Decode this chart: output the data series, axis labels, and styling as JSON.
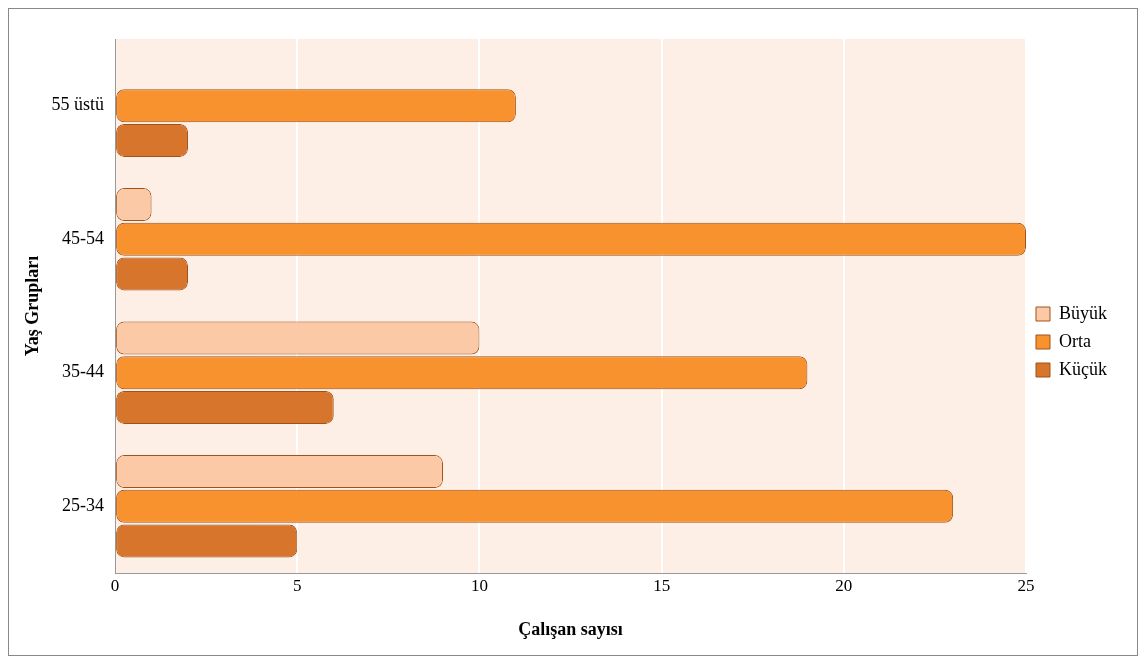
{
  "chart_data": {
    "type": "bar",
    "orientation": "horizontal",
    "xlabel": "Çalışan sayısı",
    "ylabel": "Yaş Grupları",
    "categories": [
      "55 üstü",
      "45-54",
      "35-44",
      "25-34"
    ],
    "series": [
      {
        "name": "Büyük",
        "color": "#fcc9a6",
        "values": [
          0,
          1,
          10,
          9
        ]
      },
      {
        "name": "Orta",
        "color": "#f7922e",
        "values": [
          11,
          25,
          19,
          23
        ]
      },
      {
        "name": "Küçük",
        "color": "#d8752c",
        "values": [
          2,
          2,
          6,
          5
        ]
      }
    ],
    "xlim": [
      0,
      25
    ],
    "xticks": [
      0,
      5,
      10,
      15,
      20,
      25
    ],
    "grid": "x",
    "legend": "right"
  }
}
